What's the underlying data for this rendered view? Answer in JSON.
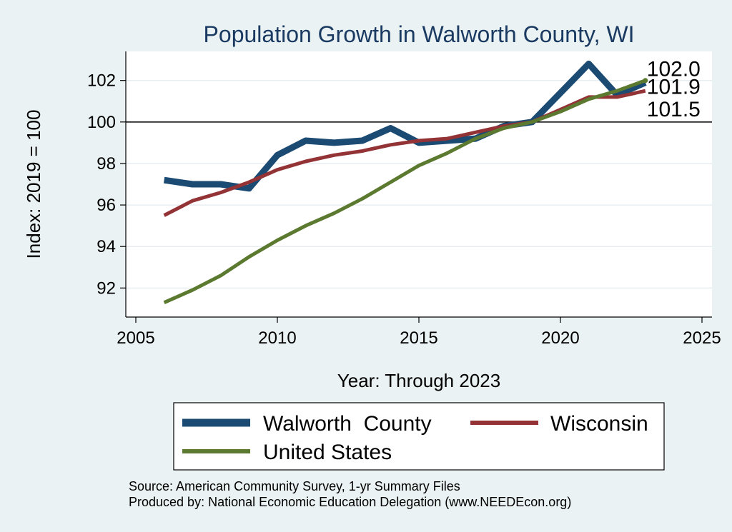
{
  "chart_data": {
    "type": "line",
    "title": "Population Growth in Walworth County, WI",
    "xlabel": "Year: Through 2023",
    "ylabel": "Index: 2019 = 100",
    "xlim": [
      2005,
      2025
    ],
    "ylim": [
      90.6,
      103.4
    ],
    "x_ticks": [
      2005,
      2010,
      2015,
      2020,
      2025
    ],
    "y_ticks": [
      92,
      94,
      96,
      98,
      100,
      102
    ],
    "reference_line": 100,
    "x": [
      2006,
      2007,
      2008,
      2009,
      2010,
      2011,
      2012,
      2013,
      2014,
      2015,
      2016,
      2017,
      2018,
      2019,
      2020,
      2021,
      2022,
      2023
    ],
    "series": [
      {
        "name": "Walworth  County",
        "color": "#1b4a73",
        "values": [
          97.2,
          97.0,
          97.0,
          96.8,
          98.4,
          99.1,
          99.0,
          99.1,
          99.7,
          99.0,
          99.1,
          99.2,
          99.8,
          100.0,
          101.4,
          102.8,
          101.3,
          101.9
        ]
      },
      {
        "name": "Wisconsin",
        "color": "#933336",
        "values": [
          95.5,
          96.2,
          96.6,
          97.1,
          97.7,
          98.1,
          98.4,
          98.6,
          98.9,
          99.1,
          99.2,
          99.5,
          99.8,
          100.0,
          100.6,
          101.2,
          101.2,
          101.5
        ]
      },
      {
        "name": "United States",
        "color": "#5b7a30",
        "values": [
          91.3,
          91.9,
          92.6,
          93.5,
          94.3,
          95.0,
          95.6,
          96.3,
          97.1,
          97.9,
          98.5,
          99.2,
          99.7,
          100.0,
          100.5,
          101.1,
          101.5,
          102.0
        ]
      }
    ],
    "end_labels": [
      "102.0",
      "101.9",
      "101.5"
    ],
    "legend": [
      "Walworth  County",
      "Wisconsin",
      "United States"
    ],
    "grid": true
  },
  "source_line": "Source: American Community Survey, 1-yr Summary Files",
  "produced_line": "Produced by: National Economic Education Delegation (www.NEEDEcon.org)"
}
